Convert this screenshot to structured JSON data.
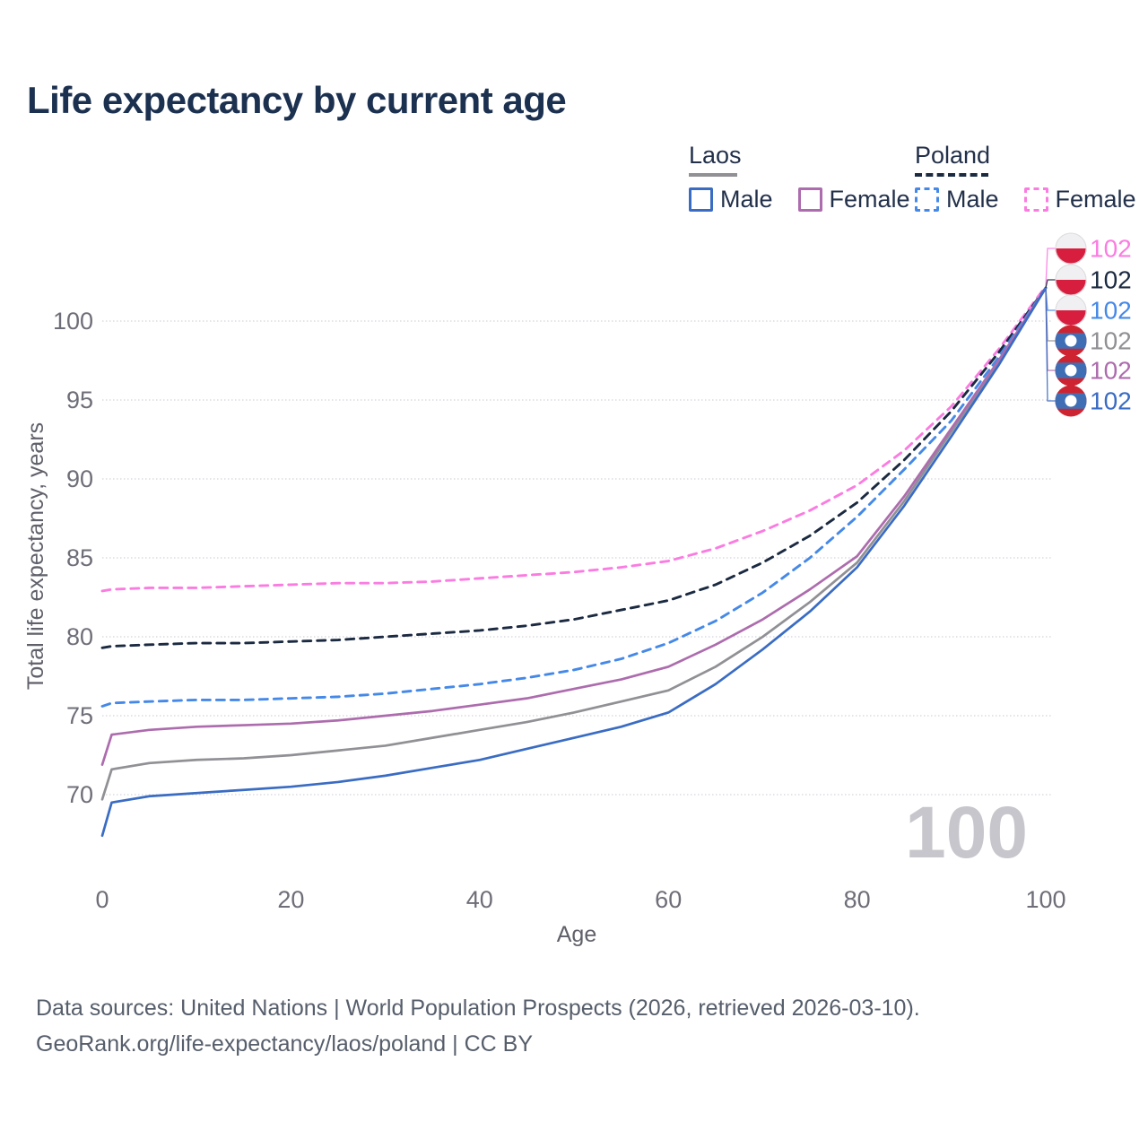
{
  "title": "Life expectancy by current age",
  "legend": {
    "groups": [
      {
        "country": "Laos",
        "line_style": "solid",
        "items": [
          {
            "label": "Male"
          },
          {
            "label": "Female"
          }
        ]
      },
      {
        "country": "Poland",
        "line_style": "dashed",
        "items": [
          {
            "label": "Male"
          },
          {
            "label": "Female"
          }
        ]
      }
    ]
  },
  "hover_age_watermark": "100",
  "footer": {
    "line1": "Data sources: United Nations | World Population Prospects (2026, retrieved 2026-03-10).",
    "line2": "GeoRank.org/life-expectancy/laos/poland | CC BY"
  },
  "colors": {
    "title_text": "#1c3150",
    "legend_text": "#22304a",
    "tick_text": "#6e6e78",
    "axis_label_text": "#5f6069",
    "gridline": "#dcdce2",
    "watermark": "#c6c6cc",
    "footer_text": "#565e6b",
    "poland_flag_white": "#f0f0f2",
    "poland_flag_red": "#d81e3f",
    "laos_flag_red": "#ce2431",
    "laos_flag_blue": "#3f6eb5"
  },
  "chart_data": {
    "type": "line",
    "title": "Life expectancy by current age",
    "xlabel": "Age",
    "ylabel": "Total life expectancy, years",
    "xlim": [
      0,
      100
    ],
    "ylim": [
      66,
      104
    ],
    "x_ticks": [
      0,
      20,
      40,
      60,
      80,
      100
    ],
    "y_ticks": [
      70,
      75,
      80,
      85,
      90,
      95,
      100
    ],
    "grid": "horizontal",
    "legend_position": "top-right",
    "ages": [
      0,
      1,
      5,
      10,
      15,
      20,
      25,
      30,
      35,
      40,
      45,
      50,
      55,
      60,
      65,
      70,
      75,
      80,
      85,
      90,
      95,
      100
    ],
    "series": [
      {
        "name": "Poland Female",
        "country": "Poland",
        "sex": "Female",
        "line_style": "dashed",
        "color": "#fb7ce1",
        "flag": "poland",
        "end_label": "102",
        "values": [
          82.9,
          83.0,
          83.1,
          83.1,
          83.2,
          83.3,
          83.4,
          83.4,
          83.5,
          83.7,
          83.9,
          84.1,
          84.4,
          84.8,
          85.6,
          86.7,
          88.0,
          89.6,
          91.8,
          94.6,
          98.2,
          102.2
        ]
      },
      {
        "name": "Poland Total",
        "country": "Poland",
        "sex": "Total",
        "line_style": "dashed",
        "color": "#1b2a41",
        "flag": "poland",
        "end_label": "102",
        "values": [
          79.3,
          79.4,
          79.5,
          79.6,
          79.6,
          79.7,
          79.8,
          80.0,
          80.2,
          80.4,
          80.7,
          81.1,
          81.7,
          82.3,
          83.3,
          84.7,
          86.4,
          88.5,
          91.2,
          94.3,
          98.0,
          102.1
        ]
      },
      {
        "name": "Poland Male",
        "country": "Poland",
        "sex": "Male",
        "line_style": "dashed",
        "color": "#4589e8",
        "flag": "poland",
        "end_label": "102",
        "values": [
          75.6,
          75.8,
          75.9,
          76.0,
          76.0,
          76.1,
          76.2,
          76.4,
          76.7,
          77.0,
          77.4,
          77.9,
          78.6,
          79.6,
          81.0,
          82.8,
          85.0,
          87.6,
          90.6,
          93.7,
          97.7,
          102.1
        ]
      },
      {
        "name": "Laos Total",
        "country": "Laos",
        "sex": "Total",
        "line_style": "solid",
        "color": "#909095",
        "flag": "laos",
        "end_label": "102",
        "values": [
          69.7,
          71.6,
          72.0,
          72.2,
          72.3,
          72.5,
          72.8,
          73.1,
          73.6,
          74.1,
          74.6,
          75.2,
          75.9,
          76.6,
          78.1,
          80.0,
          82.2,
          84.7,
          88.6,
          93.0,
          97.4,
          102.1
        ]
      },
      {
        "name": "Laos Female",
        "country": "Laos",
        "sex": "Female",
        "line_style": "solid",
        "color": "#ad6cad",
        "flag": "laos",
        "end_label": "102",
        "values": [
          71.9,
          73.8,
          74.1,
          74.3,
          74.4,
          74.5,
          74.7,
          75.0,
          75.3,
          75.7,
          76.1,
          76.7,
          77.3,
          78.1,
          79.5,
          81.1,
          83.0,
          85.1,
          88.9,
          93.2,
          97.5,
          102.1
        ]
      },
      {
        "name": "Laos Male",
        "country": "Laos",
        "sex": "Male",
        "line_style": "solid",
        "color": "#3a6cc3",
        "flag": "laos",
        "end_label": "102",
        "values": [
          67.4,
          69.5,
          69.9,
          70.1,
          70.3,
          70.5,
          70.8,
          71.2,
          71.7,
          72.2,
          72.9,
          73.6,
          74.3,
          75.2,
          77.0,
          79.2,
          81.6,
          84.4,
          88.3,
          92.7,
          97.2,
          102.1
        ]
      }
    ]
  }
}
